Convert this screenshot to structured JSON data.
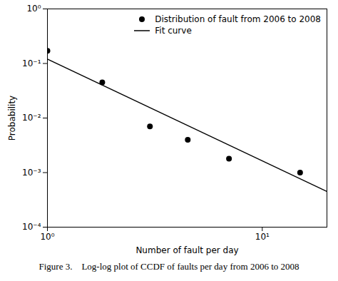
{
  "chart_data": {
    "type": "scatter",
    "xlabel": "Number of fault per day",
    "ylabel": "Probability",
    "caption": "Figure 3.    Log-log plot of CCDF of faults per day from 2006 to 2008",
    "log": true,
    "grid": false,
    "legend": "upper right",
    "xlim": [
      1.0,
      20.0
    ],
    "ylim": [
      0.0001,
      1.0
    ],
    "xticks": [
      {
        "value": 1,
        "label": "10⁰"
      },
      {
        "value": 10,
        "label": "10¹"
      }
    ],
    "yticks": [
      {
        "value": 0.0001,
        "label": "10⁻⁴"
      },
      {
        "value": 0.001,
        "label": "10⁻³"
      },
      {
        "value": 0.01,
        "label": "10⁻²"
      },
      {
        "value": 0.1,
        "label": "10⁻¹"
      },
      {
        "value": 1,
        "label": "10⁰"
      }
    ],
    "series": [
      {
        "name": "Distribution of fault from 2006 to 2008",
        "type": "scatter",
        "marker": "circle",
        "color": "#000000",
        "x": [
          1.0,
          1.8,
          3.0,
          4.5,
          7.0,
          15.0
        ],
        "values": [
          0.17,
          0.045,
          0.007,
          0.004,
          0.0018,
          0.001
        ]
      },
      {
        "name": "Fit curve",
        "type": "line",
        "line_style": "solid",
        "color": "#000000",
        "x": [
          1.0,
          20.0
        ],
        "values": [
          0.12,
          0.00045
        ]
      }
    ]
  }
}
